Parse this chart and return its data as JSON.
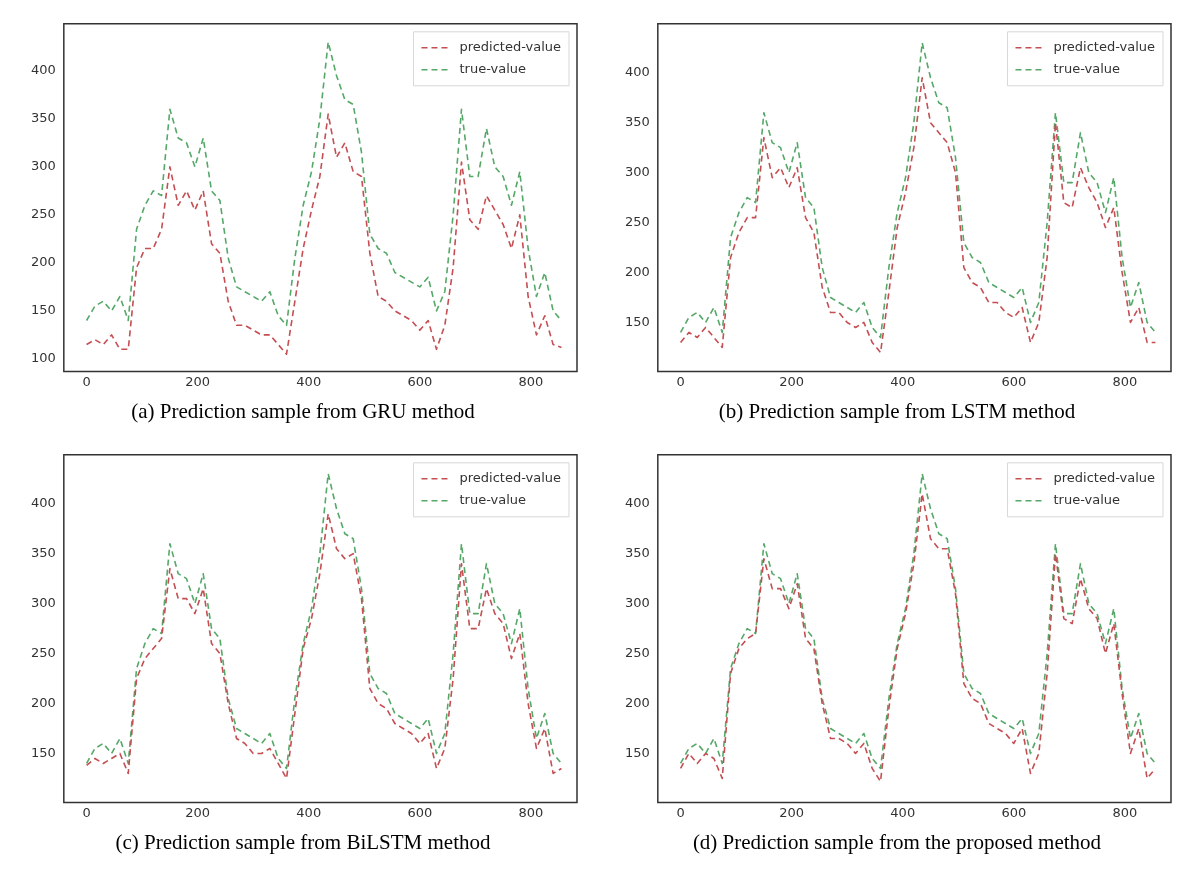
{
  "chart_data": [
    {
      "type": "line",
      "title": "(a) Prediction sample from GRU method",
      "x": [
        0,
        15,
        30,
        45,
        60,
        75,
        90,
        105,
        120,
        135,
        150,
        165,
        180,
        195,
        210,
        225,
        240,
        255,
        270,
        285,
        300,
        315,
        330,
        345,
        360,
        375,
        390,
        405,
        420,
        435,
        450,
        465,
        480,
        495,
        510,
        525,
        540,
        555,
        570,
        585,
        600,
        615,
        630,
        645,
        660,
        675,
        690,
        705,
        720,
        735,
        750,
        765,
        780,
        795,
        810,
        825,
        840,
        855
      ],
      "xlim": [
        -41,
        883
      ],
      "xticks": [
        0,
        200,
        400,
        600,
        800
      ],
      "ylim": [
        87,
        449
      ],
      "yticks": [
        100,
        150,
        200,
        250,
        300,
        350,
        400
      ],
      "legend": "top right",
      "line_style": "dashed",
      "series": [
        {
          "name": "predicted-value",
          "color": "#c44e52",
          "values": [
            115,
            120,
            115,
            125,
            110,
            110,
            195,
            215,
            215,
            235,
            300,
            260,
            275,
            255,
            275,
            220,
            210,
            160,
            135,
            135,
            130,
            125,
            125,
            115,
            105,
            160,
            215,
            255,
            290,
            355,
            310,
            325,
            295,
            290,
            210,
            165,
            160,
            150,
            145,
            140,
            130,
            140,
            110,
            135,
            195,
            305,
            245,
            235,
            270,
            255,
            240,
            215,
            250,
            165,
            125,
            145,
            115,
            112
          ]
        },
        {
          "name": "true-value",
          "color": "#55a868",
          "values": [
            140,
            155,
            160,
            150,
            165,
            140,
            235,
            260,
            275,
            270,
            360,
            330,
            325,
            300,
            330,
            275,
            265,
            205,
            175,
            170,
            165,
            160,
            170,
            145,
            135,
            205,
            260,
            295,
            350,
            430,
            395,
            370,
            365,
            315,
            230,
            215,
            210,
            190,
            185,
            180,
            175,
            185,
            150,
            170,
            250,
            360,
            290,
            290,
            340,
            300,
            290,
            260,
            295,
            215,
            165,
            190,
            150,
            140
          ]
        }
      ]
    },
    {
      "type": "line",
      "title": "(b) Prediction sample from LSTM method",
      "x": [
        0,
        15,
        30,
        45,
        60,
        75,
        90,
        105,
        120,
        135,
        150,
        165,
        180,
        195,
        210,
        225,
        240,
        255,
        270,
        285,
        300,
        315,
        330,
        345,
        360,
        375,
        390,
        405,
        420,
        435,
        450,
        465,
        480,
        495,
        510,
        525,
        540,
        555,
        570,
        585,
        600,
        615,
        630,
        645,
        660,
        675,
        690,
        705,
        720,
        735,
        750,
        765,
        780,
        795,
        810,
        825,
        840,
        855
      ],
      "xlim": [
        -41,
        883
      ],
      "xticks": [
        0,
        200,
        400,
        600,
        800
      ],
      "ylim": [
        101,
        449
      ],
      "yticks": [
        150,
        200,
        250,
        300,
        350,
        400
      ],
      "legend": "top right",
      "line_style": "dashed",
      "series": [
        {
          "name": "predicted-value",
          "color": "#c44e52",
          "values": [
            130,
            140,
            135,
            145,
            135,
            125,
            215,
            240,
            255,
            255,
            335,
            295,
            305,
            285,
            305,
            255,
            240,
            185,
            160,
            160,
            150,
            145,
            150,
            130,
            120,
            180,
            245,
            280,
            325,
            395,
            350,
            340,
            330,
            300,
            205,
            190,
            185,
            170,
            170,
            160,
            155,
            165,
            130,
            150,
            215,
            350,
            270,
            265,
            305,
            285,
            270,
            245,
            265,
            200,
            150,
            165,
            130,
            130
          ]
        },
        {
          "name": "true-value",
          "color": "#55a868",
          "values": [
            140,
            155,
            160,
            150,
            165,
            140,
            235,
            260,
            275,
            270,
            360,
            330,
            325,
            300,
            330,
            275,
            265,
            205,
            175,
            170,
            165,
            160,
            170,
            145,
            135,
            205,
            260,
            295,
            350,
            430,
            395,
            370,
            365,
            315,
            230,
            215,
            210,
            190,
            185,
            180,
            175,
            185,
            150,
            170,
            250,
            360,
            290,
            290,
            340,
            300,
            290,
            260,
            295,
            215,
            165,
            190,
            150,
            140
          ]
        }
      ]
    },
    {
      "type": "line",
      "title": "(c) Prediction sample from BiLSTM method",
      "x": [
        0,
        15,
        30,
        45,
        60,
        75,
        90,
        105,
        120,
        135,
        150,
        165,
        180,
        195,
        210,
        225,
        240,
        255,
        270,
        285,
        300,
        315,
        330,
        345,
        360,
        375,
        390,
        405,
        420,
        435,
        450,
        465,
        480,
        495,
        510,
        525,
        540,
        555,
        570,
        585,
        600,
        615,
        630,
        645,
        660,
        675,
        690,
        705,
        720,
        735,
        750,
        765,
        780,
        795,
        810,
        825,
        840,
        855
      ],
      "xlim": [
        -41,
        883
      ],
      "xticks": [
        0,
        200,
        400,
        600,
        800
      ],
      "ylim": [
        101,
        449
      ],
      "yticks": [
        150,
        200,
        250,
        300,
        350,
        400
      ],
      "legend": "top right",
      "line_style": "dashed",
      "series": [
        {
          "name": "predicted-value",
          "color": "#c44e52",
          "values": [
            138,
            145,
            140,
            145,
            150,
            130,
            225,
            245,
            255,
            265,
            335,
            305,
            305,
            290,
            315,
            260,
            250,
            200,
            165,
            160,
            150,
            150,
            155,
            140,
            125,
            190,
            255,
            285,
            330,
            390,
            355,
            345,
            350,
            305,
            215,
            200,
            195,
            180,
            175,
            170,
            160,
            170,
            135,
            155,
            225,
            340,
            275,
            275,
            315,
            290,
            280,
            245,
            270,
            200,
            155,
            175,
            130,
            135
          ]
        },
        {
          "name": "true-value",
          "color": "#55a868",
          "values": [
            140,
            155,
            160,
            150,
            165,
            140,
            235,
            260,
            275,
            270,
            360,
            330,
            325,
            300,
            330,
            275,
            265,
            205,
            175,
            170,
            165,
            160,
            170,
            145,
            135,
            205,
            260,
            295,
            350,
            430,
            395,
            370,
            365,
            315,
            230,
            215,
            210,
            190,
            185,
            180,
            175,
            185,
            150,
            170,
            250,
            360,
            290,
            290,
            340,
            300,
            290,
            260,
            295,
            215,
            165,
            190,
            150,
            140
          ]
        }
      ]
    },
    {
      "type": "line",
      "title": "(d) Prediction sample from the proposed method",
      "x": [
        0,
        15,
        30,
        45,
        60,
        75,
        90,
        105,
        120,
        135,
        150,
        165,
        180,
        195,
        210,
        225,
        240,
        255,
        270,
        285,
        300,
        315,
        330,
        345,
        360,
        375,
        390,
        405,
        420,
        435,
        450,
        465,
        480,
        495,
        510,
        525,
        540,
        555,
        570,
        585,
        600,
        615,
        630,
        645,
        660,
        675,
        690,
        705,
        720,
        735,
        750,
        765,
        780,
        795,
        810,
        825,
        840,
        855
      ],
      "xlim": [
        -41,
        883
      ],
      "xticks": [
        0,
        200,
        400,
        600,
        800
      ],
      "ylim": [
        101,
        449
      ],
      "yticks": [
        150,
        200,
        250,
        300,
        350,
        400
      ],
      "legend": "top right",
      "line_style": "dashed",
      "series": [
        {
          "name": "predicted-value",
          "color": "#c44e52",
          "values": [
            135,
            150,
            140,
            150,
            145,
            125,
            230,
            255,
            265,
            270,
            345,
            315,
            315,
            295,
            320,
            265,
            255,
            200,
            165,
            165,
            160,
            150,
            160,
            135,
            122,
            195,
            255,
            290,
            340,
            410,
            365,
            355,
            355,
            310,
            220,
            205,
            200,
            180,
            175,
            170,
            160,
            175,
            130,
            150,
            230,
            350,
            285,
            280,
            325,
            295,
            285,
            250,
            280,
            210,
            150,
            175,
            125,
            135
          ]
        },
        {
          "name": "true-value",
          "color": "#55a868",
          "values": [
            140,
            155,
            160,
            150,
            165,
            140,
            235,
            260,
            275,
            270,
            360,
            330,
            325,
            300,
            330,
            275,
            265,
            205,
            175,
            170,
            165,
            160,
            170,
            145,
            135,
            205,
            260,
            295,
            350,
            430,
            395,
            370,
            365,
            315,
            230,
            215,
            210,
            190,
            185,
            180,
            175,
            185,
            150,
            170,
            250,
            360,
            290,
            290,
            340,
            300,
            290,
            260,
            295,
            215,
            165,
            190,
            150,
            140
          ]
        }
      ]
    }
  ]
}
